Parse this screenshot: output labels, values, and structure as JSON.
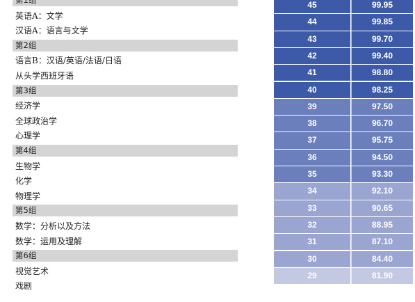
{
  "left_list": [
    {
      "type": "group",
      "text": "第1组"
    },
    {
      "type": "item",
      "text": "英语A：文学"
    },
    {
      "type": "item",
      "text": "汉语A：语言与文学"
    },
    {
      "type": "group",
      "text": "第2组"
    },
    {
      "type": "item",
      "text": "语言B：汉语/英语/法语/日语"
    },
    {
      "type": "item",
      "text": "从头学西班牙语"
    },
    {
      "type": "group",
      "text": "第3组"
    },
    {
      "type": "item",
      "text": "经济学"
    },
    {
      "type": "item",
      "text": "全球政治学"
    },
    {
      "type": "item",
      "text": "心理学"
    },
    {
      "type": "group",
      "text": "第4组"
    },
    {
      "type": "item",
      "text": "生物学"
    },
    {
      "type": "item",
      "text": "化学"
    },
    {
      "type": "item",
      "text": "物理学"
    },
    {
      "type": "group",
      "text": "第5组"
    },
    {
      "type": "item",
      "text": "数学：分析以及方法"
    },
    {
      "type": "item",
      "text": "数学：运用及理解"
    },
    {
      "type": "group",
      "text": "第6组"
    },
    {
      "type": "item",
      "text": "视觉艺术"
    },
    {
      "type": "item",
      "text": "戏剧"
    }
  ],
  "footer_text": "",
  "score_table": [
    {
      "score": "45",
      "percentile": "99.95",
      "color": "#3d5aa8"
    },
    {
      "score": "44",
      "percentile": "99.85",
      "color": "#3d5aa8"
    },
    {
      "score": "43",
      "percentile": "99.70",
      "color": "#3d5aa8"
    },
    {
      "score": "42",
      "percentile": "99.40",
      "color": "#3d5aa8"
    },
    {
      "score": "41",
      "percentile": "98.80",
      "color": "#3d5aa8"
    },
    {
      "score": "40",
      "percentile": "98.25",
      "color": "#3d5aa8"
    },
    {
      "score": "39",
      "percentile": "97.50",
      "color": "#6c7fbd"
    },
    {
      "score": "38",
      "percentile": "96.70",
      "color": "#6c7fbd"
    },
    {
      "score": "37",
      "percentile": "95.75",
      "color": "#6c7fbd"
    },
    {
      "score": "36",
      "percentile": "94.50",
      "color": "#6c7fbd"
    },
    {
      "score": "35",
      "percentile": "93.30",
      "color": "#6c7fbd"
    },
    {
      "score": "34",
      "percentile": "92.10",
      "color": "#9aa6d1"
    },
    {
      "score": "33",
      "percentile": "90.65",
      "color": "#9aa6d1"
    },
    {
      "score": "32",
      "percentile": "88.95",
      "color": "#9aa6d1"
    },
    {
      "score": "31",
      "percentile": "87.10",
      "color": "#9aa6d1"
    },
    {
      "score": "30",
      "percentile": "84.40",
      "color": "#9aa6d1"
    },
    {
      "score": "29",
      "percentile": "81.90",
      "color": "#c3c9e1"
    }
  ]
}
